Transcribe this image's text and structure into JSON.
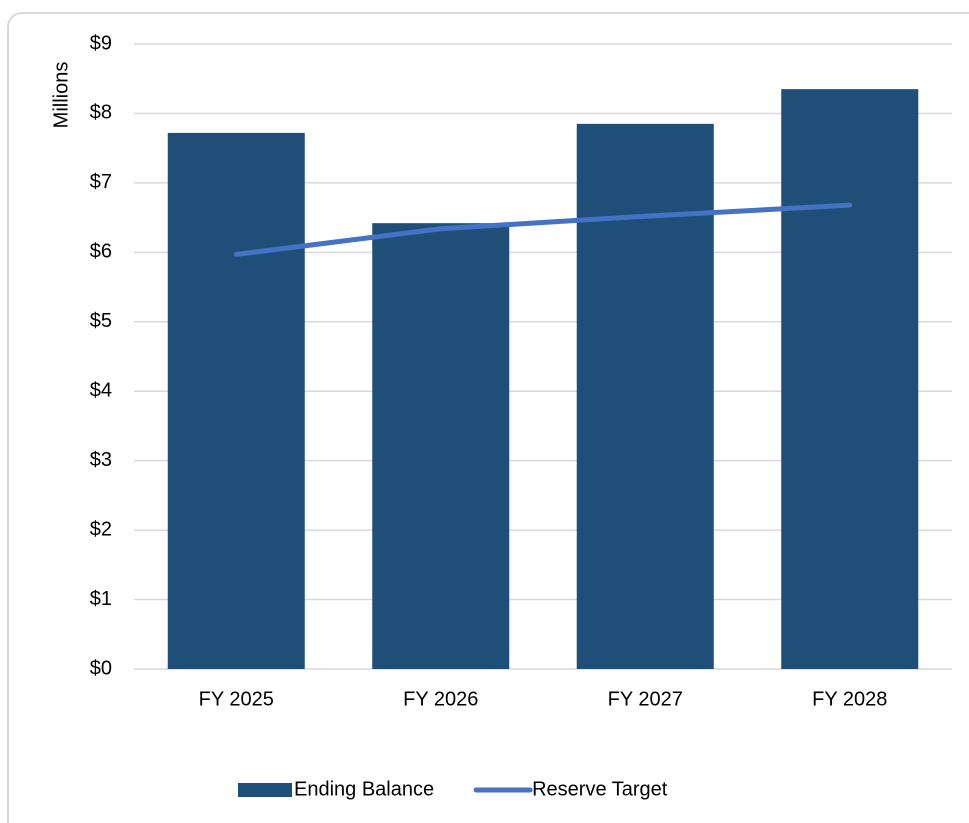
{
  "chart_data": {
    "type": "bar",
    "y_axis_label": "Millions",
    "categories": [
      "FY 2025",
      "FY 2026",
      "FY 2027",
      "FY 2028"
    ],
    "series": [
      {
        "name": "Ending Balance",
        "type": "bar",
        "color": "#1f4e79",
        "values": [
          7.72,
          6.42,
          7.85,
          8.35
        ]
      },
      {
        "name": "Reserve Target",
        "type": "line",
        "color": "#4472c4",
        "values": [
          5.97,
          6.34,
          6.52,
          6.68
        ]
      }
    ],
    "ylim": [
      0,
      9
    ],
    "yticks": [
      {
        "value": 0,
        "label": "$0"
      },
      {
        "value": 1,
        "label": "$1"
      },
      {
        "value": 2,
        "label": "$2"
      },
      {
        "value": 3,
        "label": "$3"
      },
      {
        "value": 4,
        "label": "$4"
      },
      {
        "value": 5,
        "label": "$5"
      },
      {
        "value": 6,
        "label": "$6"
      },
      {
        "value": 7,
        "label": "$7"
      },
      {
        "value": 8,
        "label": "$8"
      },
      {
        "value": 9,
        "label": "$9"
      }
    ],
    "grid": true,
    "legend": "bottom"
  }
}
